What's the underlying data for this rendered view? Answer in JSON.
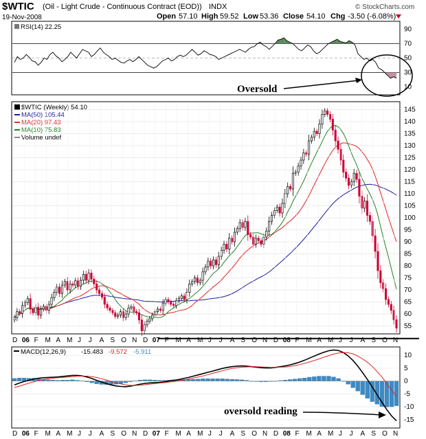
{
  "header": {
    "symbol": "$WTIC",
    "name": "(Oil - Light Crude - Continuous Contract (EOD))",
    "exchange": "INDX",
    "date": "19-Nov-2008",
    "open_label": "Open",
    "open": "57.10",
    "high_label": "High",
    "high": "59.52",
    "low_label": "Low",
    "low": "53.36",
    "close_label": "Close",
    "close": "54.10",
    "chg_label": "Chg",
    "chg": "-3.50 (-6.08%)",
    "credit": "© StockCharts.com"
  },
  "colors": {
    "up_candle": "#000000",
    "down_candle": "#cc0033",
    "ma50": "#1a1aa0",
    "ma20": "#e02020",
    "ma10": "#208020",
    "rsi_fill": "#5a8a5a",
    "rsi_oversold_fill": "#c090a0",
    "macd_line": "#000000",
    "macd_signal": "#e02020",
    "histogram": "#3d8ac4"
  },
  "annotations": {
    "oversold": "Oversold",
    "oversold_reading": "oversold reading"
  },
  "chart_data": [
    {
      "type": "line",
      "panel": "RSI",
      "title": "RSI(14) 22.25",
      "yticks": [
        10,
        30,
        50,
        70,
        90
      ],
      "ylim": [
        0,
        100
      ],
      "overbought": 70,
      "oversold": 30,
      "series": [
        {
          "name": "RSI(14)",
          "values": [
            44,
            52,
            48,
            50,
            55,
            51,
            46,
            45,
            40,
            44,
            50,
            48,
            55,
            58,
            53,
            50,
            45,
            48,
            52,
            58,
            54,
            50,
            56,
            62,
            60,
            58,
            52,
            55,
            60,
            64,
            58,
            55,
            52,
            48,
            50,
            47,
            44,
            43,
            46,
            48,
            45,
            48,
            52,
            48,
            44,
            40,
            38,
            36,
            38,
            42,
            46,
            48,
            50,
            46,
            48,
            52,
            54,
            52,
            54,
            58,
            62,
            58,
            54,
            56,
            60,
            58,
            55,
            54,
            52,
            48,
            50,
            52,
            54,
            56,
            58,
            60,
            62,
            60,
            58,
            62,
            65,
            66,
            70,
            72,
            68,
            66,
            62,
            66,
            70,
            75,
            76,
            78,
            74,
            72,
            70,
            66,
            62,
            60,
            64,
            68,
            66,
            60,
            56,
            58,
            62,
            66,
            70,
            72,
            74,
            76,
            73,
            72,
            71,
            74,
            72,
            68,
            56,
            52,
            48,
            50,
            46,
            48,
            44,
            36,
            34,
            30,
            26,
            22,
            24,
            22
          ]
        }
      ]
    },
    {
      "type": "candlestick",
      "panel": "price",
      "title": "$WTIC (Weekly) 54.10",
      "yticks": [
        55,
        60,
        65,
        70,
        75,
        80,
        85,
        90,
        95,
        100,
        105,
        110,
        115,
        120,
        125,
        130,
        135,
        140,
        145
      ],
      "ylim": [
        52,
        148
      ],
      "x_labels": [
        "D",
        "06",
        "F",
        "M",
        "A",
        "M",
        "J",
        "J",
        "A",
        "S",
        "O",
        "N",
        "D",
        "07",
        "F",
        "M",
        "A",
        "M",
        "J",
        "J",
        "A",
        "S",
        "O",
        "N",
        "D",
        "08",
        "F",
        "M",
        "A",
        "M",
        "J",
        "J",
        "A",
        "S",
        "O",
        "N"
      ],
      "support_level": 51.5,
      "legend": [
        {
          "name": "MA(50) 105.44",
          "color": "#1a1aa0"
        },
        {
          "name": "MA(20) 97.43",
          "color": "#e02020"
        },
        {
          "name": "MA(10) 75.83",
          "color": "#208020"
        },
        {
          "name": "Volume undef",
          "color": "#888888"
        }
      ],
      "close": [
        58.5,
        61.0,
        60.2,
        63.5,
        64.8,
        66.4,
        62.0,
        60.5,
        62.8,
        59.5,
        62.0,
        63.2,
        61.5,
        64.0,
        66.8,
        69.0,
        71.2,
        68.5,
        72.0,
        73.5,
        70.0,
        72.5,
        72.0,
        73.8,
        71.5,
        74.0,
        76.5,
        74.0,
        77.0,
        74.5,
        72.5,
        70.0,
        68.5,
        67.0,
        64.0,
        62.5,
        61.5,
        60.5,
        59.0,
        59.5,
        61.0,
        58.5,
        60.0,
        62.5,
        63.0,
        61.0,
        60.5,
        57.5,
        53.0,
        55.5,
        57.0,
        58.0,
        59.5,
        61.0,
        62.0,
        61.5,
        64.5,
        66.0,
        65.0,
        64.0,
        63.5,
        65.5,
        66.5,
        67.5,
        66.0,
        69.0,
        72.5,
        73.5,
        75.0,
        73.0,
        74.0,
        77.5,
        79.5,
        82.0,
        80.0,
        82.5,
        80.5,
        84.0,
        86.5,
        89.0,
        87.0,
        91.5,
        90.0,
        94.0,
        95.5,
        98.0,
        96.0,
        98.5,
        93.0,
        92.0,
        89.0,
        91.5,
        90.5,
        89.0,
        92.0,
        94.5,
        98.5,
        101.0,
        103.0,
        104.5,
        102.0,
        106.0,
        110.0,
        113.0,
        112.0,
        118.5,
        119.0,
        121.5,
        124.0,
        127.0,
        126.5,
        132.0,
        133.5,
        136.0,
        135.0,
        139.0,
        143.0,
        144.5,
        143.0,
        141.0,
        136.5,
        132.0,
        128.5,
        124.0,
        119.0,
        116.5,
        113.5,
        115.0,
        118.5,
        116.0,
        109.0,
        104.0,
        107.0,
        101.0,
        98.5,
        92.5,
        86.0,
        78.0,
        73.0,
        70.5,
        66.0,
        64.0,
        61.5,
        57.6,
        54.1
      ]
    },
    {
      "type": "line",
      "panel": "MACD",
      "title": "MACD(12,26,9)",
      "title_values": [
        "-15.483",
        "-9.572",
        "-5.911"
      ],
      "yticks": [
        -15,
        -10,
        -5,
        0,
        5,
        10
      ],
      "ylim": [
        -18,
        13
      ],
      "series": [
        {
          "name": "MACD(12,26,9)",
          "values": [
            -1.5,
            -0.8,
            -0.2,
            0.3,
            0.8,
            1.1,
            1.3,
            1.4,
            1.5,
            1.6,
            1.8,
            2.0,
            2.2,
            2.2,
            2.0,
            1.6,
            1.0,
            0.3,
            -0.4,
            -1.0,
            -1.5,
            -1.9,
            -2.1,
            -2.2,
            -2.0,
            -1.6,
            -1.2,
            -0.9,
            -0.7,
            -0.6,
            -0.5,
            -0.3,
            0.0,
            0.3,
            0.6,
            1.0,
            1.4,
            1.9,
            2.4,
            2.9,
            3.4,
            3.9,
            4.4,
            4.9,
            5.3,
            5.6,
            5.8,
            5.9,
            5.8,
            5.6,
            5.4,
            5.2,
            5.1,
            5.1,
            5.3,
            5.6,
            5.9,
            6.3,
            6.8,
            7.4,
            8.1,
            8.9,
            9.7,
            10.5,
            11.2,
            11.8,
            12.1,
            11.9,
            11.1,
            9.8,
            8.0,
            5.8,
            3.3,
            0.6,
            -2.3,
            -5.3,
            -8.3,
            -11.1,
            -13.6,
            -15.5
          ]
        },
        {
          "name": "Signal",
          "values": [
            -2.5,
            -2.0,
            -1.4,
            -0.8,
            -0.3,
            0.2,
            0.6,
            0.9,
            1.1,
            1.3,
            1.4,
            1.6,
            1.7,
            1.9,
            1.9,
            1.9,
            1.7,
            1.4,
            0.9,
            0.4,
            -0.2,
            -0.7,
            -1.1,
            -1.5,
            -1.7,
            -1.7,
            -1.6,
            -1.4,
            -1.2,
            -1.0,
            -0.8,
            -0.6,
            -0.4,
            -0.2,
            0.1,
            0.4,
            0.8,
            1.2,
            1.6,
            2.0,
            2.5,
            3.0,
            3.5,
            4.0,
            4.5,
            4.9,
            5.2,
            5.4,
            5.5,
            5.6,
            5.6,
            5.5,
            5.4,
            5.3,
            5.3,
            5.4,
            5.5,
            5.7,
            6.0,
            6.4,
            6.9,
            7.4,
            8.0,
            8.6,
            9.3,
            9.9,
            10.5,
            10.9,
            11.1,
            11.0,
            10.6,
            9.7,
            8.6,
            7.3,
            5.7,
            3.7,
            1.6,
            -1.0,
            -3.6,
            -5.9
          ]
        }
      ],
      "histogram": [
        1.0,
        1.2,
        1.2,
        1.1,
        1.1,
        0.9,
        0.7,
        0.5,
        0.4,
        0.3,
        0.4,
        0.4,
        0.5,
        0.3,
        0.1,
        -0.3,
        -0.7,
        -1.1,
        -1.3,
        -1.4,
        -1.3,
        -1.2,
        -1.0,
        -0.7,
        -0.3,
        0.1,
        0.4,
        0.5,
        0.5,
        0.4,
        0.3,
        0.3,
        0.4,
        0.5,
        0.5,
        0.6,
        0.6,
        0.7,
        0.8,
        0.9,
        0.9,
        0.9,
        0.9,
        0.9,
        0.8,
        0.7,
        0.6,
        0.5,
        0.3,
        0.0,
        -0.2,
        -0.3,
        -0.3,
        -0.2,
        0.0,
        0.2,
        0.4,
        0.6,
        0.8,
        1.0,
        1.2,
        1.5,
        1.7,
        1.9,
        1.9,
        1.9,
        1.6,
        1.0,
        0.0,
        -1.2,
        -2.6,
        -3.9,
        -5.3,
        -6.7,
        -8.0,
        -9.0,
        -9.9,
        -10.1,
        -10.0,
        -9.6
      ]
    }
  ]
}
